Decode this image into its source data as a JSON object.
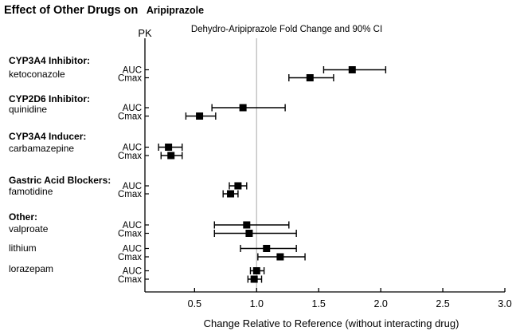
{
  "chart_data": {
    "type": "forest",
    "title_main": "Effect of Other Drugs on",
    "title_suffix": "Aripiprazole",
    "column_header_pk": "PK",
    "plot_header": "Dehydro-Aripiprazole Fold Change and 90% CI",
    "xlabel": "Change Relative to Reference (without interacting drug)",
    "x_ticks": [
      "0.5",
      "1.0",
      "1.5",
      "2.0",
      "2.5",
      "3.0"
    ],
    "x_tick_values": [
      0.5,
      1.0,
      1.5,
      2.0,
      2.5,
      3.0
    ],
    "xlim": [
      0.1,
      3.0
    ],
    "reference_value": 1.0,
    "ci_level": "90% CI",
    "grid": false,
    "groups": [
      {
        "group": "CYP3A4 Inhibitor:",
        "drug": "ketoconazole",
        "rows": [
          {
            "pk": "AUC",
            "value": 1.77,
            "lo": 1.54,
            "hi": 2.04
          },
          {
            "pk": "Cmax",
            "value": 1.43,
            "lo": 1.26,
            "hi": 1.62
          }
        ]
      },
      {
        "group": "CYP2D6 Inhibitor:",
        "drug": "quinidine",
        "rows": [
          {
            "pk": "AUC",
            "value": 0.89,
            "lo": 0.64,
            "hi": 1.23
          },
          {
            "pk": "Cmax",
            "value": 0.54,
            "lo": 0.43,
            "hi": 0.67
          }
        ]
      },
      {
        "group": "CYP3A4 Inducer:",
        "drug": "carbamazepine",
        "rows": [
          {
            "pk": "AUC",
            "value": 0.29,
            "lo": 0.21,
            "hi": 0.4
          },
          {
            "pk": "Cmax",
            "value": 0.31,
            "lo": 0.23,
            "hi": 0.4
          }
        ]
      },
      {
        "group": "Gastric Acid Blockers:",
        "drug": "famotidine",
        "rows": [
          {
            "pk": "AUC",
            "value": 0.85,
            "lo": 0.78,
            "hi": 0.92
          },
          {
            "pk": "Cmax",
            "value": 0.79,
            "lo": 0.73,
            "hi": 0.85
          }
        ]
      },
      {
        "group": "Other:",
        "drug": "valproate",
        "rows": [
          {
            "pk": "AUC",
            "value": 0.92,
            "lo": 0.66,
            "hi": 1.26
          },
          {
            "pk": "Cmax",
            "value": 0.94,
            "lo": 0.66,
            "hi": 1.32
          }
        ]
      },
      {
        "group": null,
        "drug": "lithium",
        "rows": [
          {
            "pk": "AUC",
            "value": 1.08,
            "lo": 0.87,
            "hi": 1.32
          },
          {
            "pk": "Cmax",
            "value": 1.19,
            "lo": 1.01,
            "hi": 1.39
          }
        ]
      },
      {
        "group": null,
        "drug": "lorazepam",
        "rows": [
          {
            "pk": "AUC",
            "value": 1.0,
            "lo": 0.95,
            "hi": 1.06
          },
          {
            "pk": "Cmax",
            "value": 0.98,
            "lo": 0.93,
            "hi": 1.04
          }
        ]
      }
    ],
    "colors": {
      "data": "#000000",
      "reference_line": "#c4c4c4",
      "axis": "#000000",
      "text": "#000000"
    }
  }
}
